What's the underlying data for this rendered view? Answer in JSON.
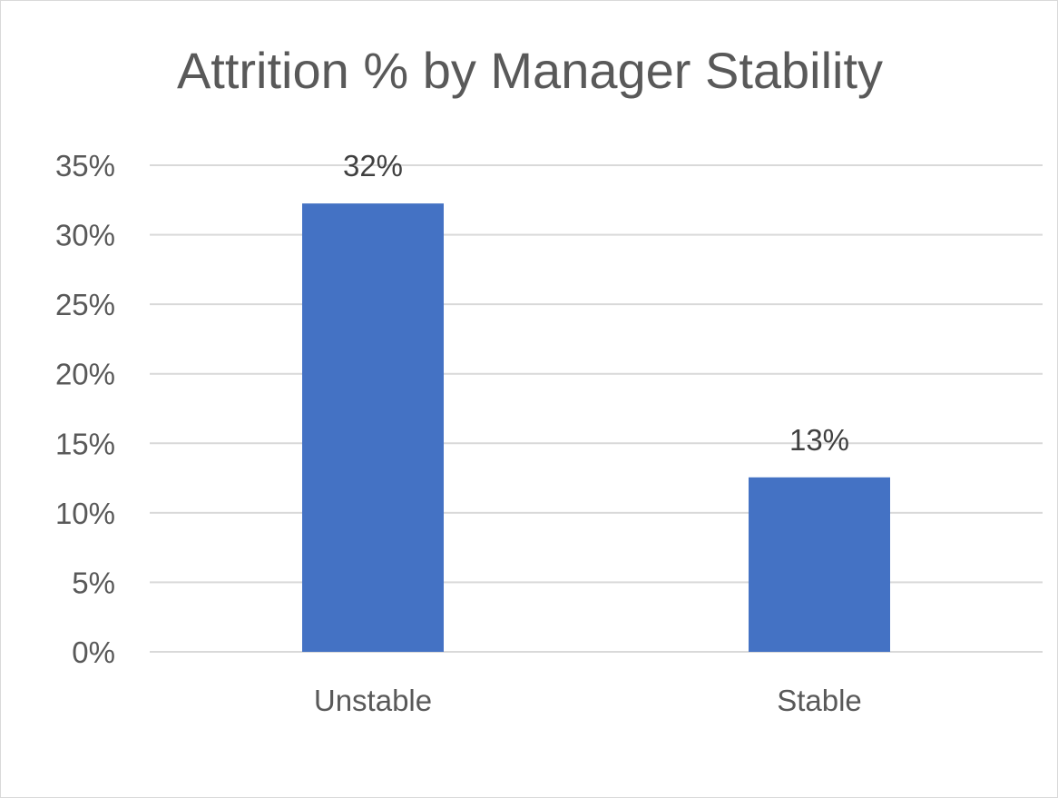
{
  "chart_data": {
    "type": "bar",
    "title": "Attrition % by Manager Stability",
    "xlabel": "",
    "ylabel": "",
    "categories": [
      "Unstable",
      "Stable"
    ],
    "values": [
      0.3225,
      0.1255
    ],
    "data_labels": [
      "32%",
      "13%"
    ],
    "y_ticks": [
      {
        "value": 0,
        "label": "0%"
      },
      {
        "value": 0.05,
        "label": "5%"
      },
      {
        "value": 0.1,
        "label": "10%"
      },
      {
        "value": 0.15,
        "label": "15%"
      },
      {
        "value": 0.2,
        "label": "20%"
      },
      {
        "value": 0.25,
        "label": "25%"
      },
      {
        "value": 0.3,
        "label": "30%"
      },
      {
        "value": 0.35,
        "label": "35%"
      }
    ],
    "ylim": [
      0,
      0.35
    ],
    "grid": true,
    "legend": "none",
    "colors": {
      "bar": "#4472c4",
      "grid": "#d9d9d9",
      "text": "#595959",
      "label": "#404040"
    }
  }
}
